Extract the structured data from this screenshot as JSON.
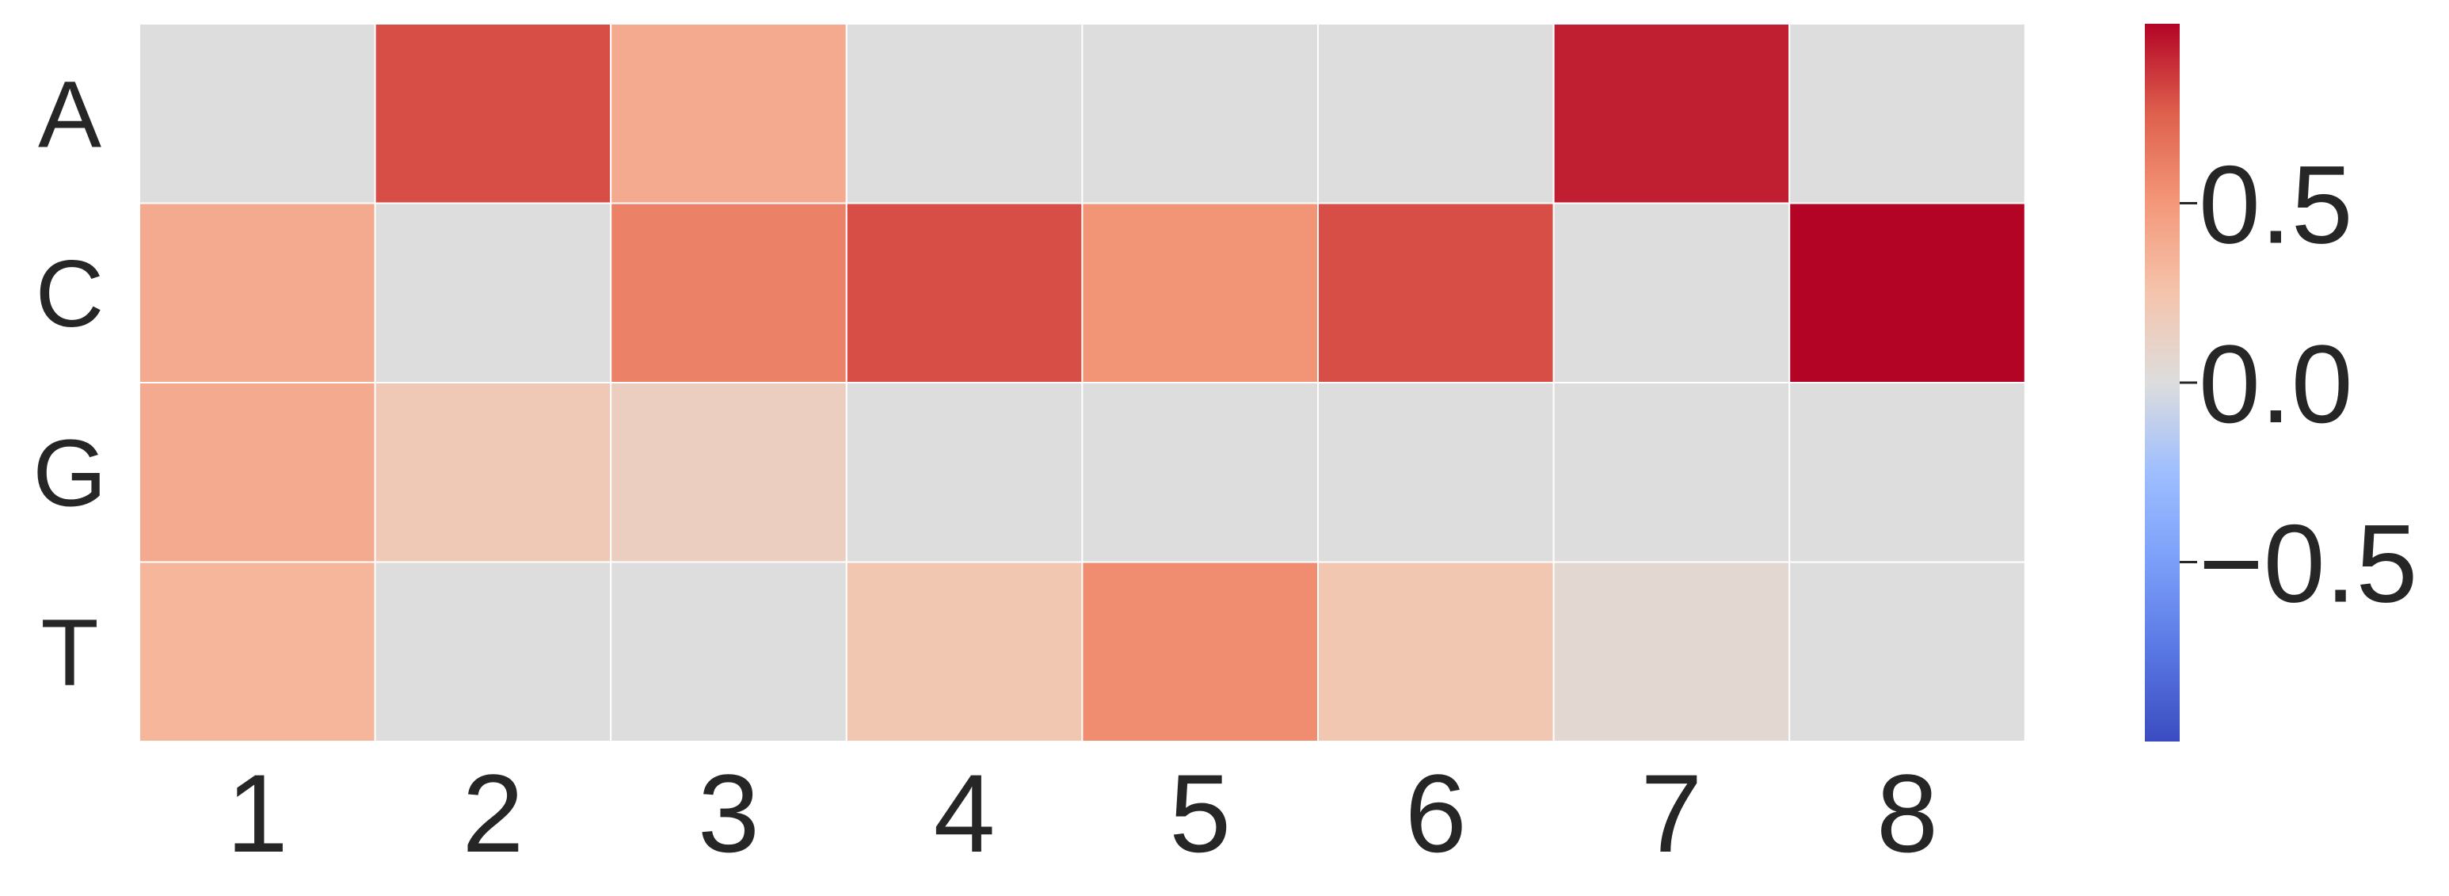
{
  "chart_data": {
    "type": "heatmap",
    "title": "",
    "xlabel": "",
    "ylabel": "",
    "x_categories": [
      "1",
      "2",
      "3",
      "4",
      "5",
      "6",
      "7",
      "8"
    ],
    "y_categories": [
      "A",
      "C",
      "G",
      "T"
    ],
    "values": [
      [
        0.0,
        0.8,
        0.4,
        0.0,
        0.0,
        0.0,
        0.93,
        0.0
      ],
      [
        0.4,
        0.0,
        0.6,
        0.8,
        0.52,
        0.8,
        0.0,
        1.0
      ],
      [
        0.4,
        0.2,
        0.15,
        0.0,
        0.0,
        0.0,
        0.0,
        0.0
      ],
      [
        0.33,
        0.0,
        0.0,
        0.22,
        0.55,
        0.22,
        0.06,
        0.0
      ]
    ],
    "colormap": "coolwarm",
    "vmin": -1.0,
    "vmax": 1.0,
    "colorbar": {
      "ticks": [
        0.5,
        0.0,
        -0.5
      ],
      "tick_labels": [
        "0.5",
        "0.0",
        "−0.5"
      ]
    },
    "grid": false,
    "cell_border_color": "#ffffff",
    "text_color": "#262626"
  }
}
